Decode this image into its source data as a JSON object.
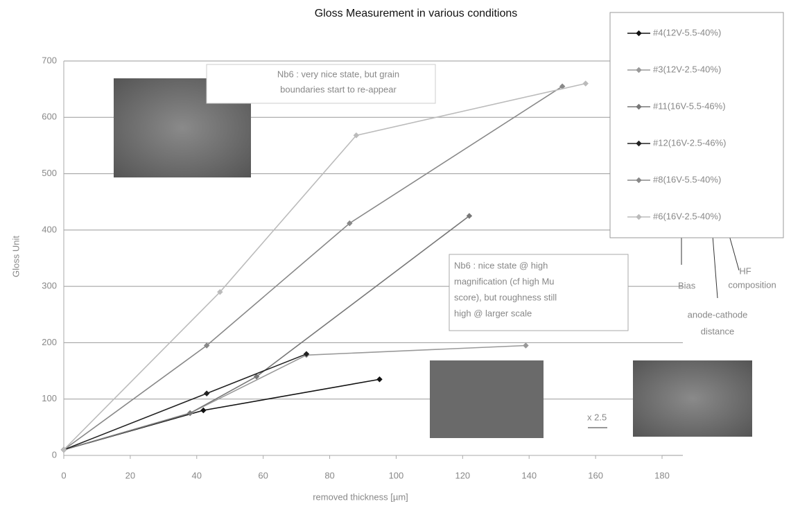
{
  "chart_data": {
    "type": "line",
    "title": "Gloss Measurement in various conditions",
    "x_label": "removed thickness [µm]",
    "y_label": "Gloss Unit",
    "xlim": [
      0,
      180
    ],
    "xticks": [
      0,
      20,
      40,
      60,
      80,
      100,
      120,
      140,
      160,
      180
    ],
    "ylim": [
      0,
      700
    ],
    "yticks": [
      0,
      100,
      200,
      300,
      400,
      500,
      600,
      700
    ],
    "grid": true,
    "legend": "right",
    "series": [
      {
        "name": "#4(12V-5.5-40%)",
        "color": "#111111",
        "x": [
          0,
          42,
          95
        ],
        "values": [
          10,
          80,
          135
        ]
      },
      {
        "name": "#3(12V-2.5-40%)",
        "color": "#999999",
        "x": [
          0,
          38,
          73,
          139
        ],
        "values": [
          10,
          75,
          178,
          195
        ]
      },
      {
        "name": "#11(16V-5.5-46%)",
        "color": "#777777",
        "x": [
          0,
          38,
          58,
          122
        ],
        "values": [
          10,
          75,
          140,
          425
        ]
      },
      {
        "name": "#12(16V-2.5-46%)",
        "color": "#222222",
        "x": [
          0,
          43,
          73
        ],
        "values": [
          10,
          110,
          180
        ]
      },
      {
        "name": "#8(16V-5.5-40%)",
        "color": "#888888",
        "x": [
          0,
          43,
          86,
          150
        ],
        "values": [
          10,
          195,
          412,
          655
        ]
      },
      {
        "name": "#6(16V-2.5-40%)",
        "color": "#bbbbbb",
        "x": [
          0,
          47,
          88,
          157
        ],
        "values": [
          10,
          290,
          568,
          660
        ]
      }
    ],
    "annotations": [
      {
        "lines": [
          "Nb6 : very nice state, but grain",
          "boundaries start to re-appear"
        ]
      },
      {
        "lines": [
          "Nb6 : nice state @ high",
          "magnification (cf high Mu",
          "score), but roughness still",
          "high @ larger scale"
        ]
      },
      {
        "lines": [
          "Bias"
        ]
      },
      {
        "lines": [
          "anode-cathode",
          "distance"
        ]
      },
      {
        "lines": [
          "HF",
          "composition"
        ]
      },
      {
        "lines": [
          "x 2.5"
        ]
      }
    ]
  }
}
